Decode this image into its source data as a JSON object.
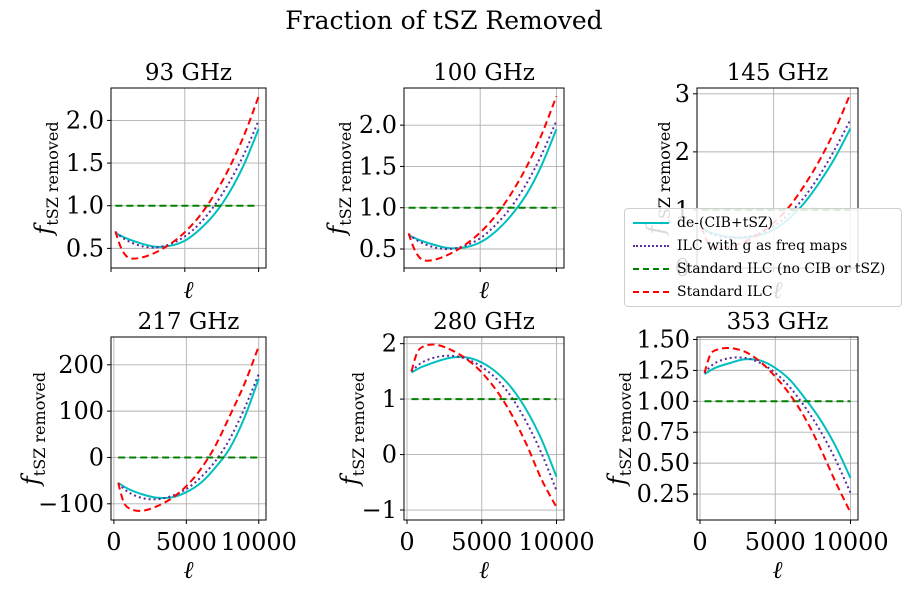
{
  "figure": {
    "suptitle": "Fraction of tSZ Removed"
  },
  "legend": {
    "items": [
      {
        "label": "de-(CIB+tSZ)",
        "color": "#00bfbf",
        "style": "solid"
      },
      {
        "label": "ILC with g as freq maps",
        "color": "#5b2ca0",
        "style": "dotted"
      },
      {
        "label": "Standard ILC (no CIB or tSZ)",
        "color": "#008000",
        "style": "dashed"
      },
      {
        "label": "Standard ILC",
        "color": "#ff0000",
        "style": "dashed"
      }
    ]
  },
  "chart_data": [
    {
      "type": "line",
      "title": "93 GHz",
      "xlabel": "ℓ",
      "ylabel": "f_tSZ removed",
      "xlim": [
        0,
        10500
      ],
      "ylim": [
        0.27,
        2.38
      ],
      "grid": true,
      "xticks": [
        0,
        5000,
        10000
      ],
      "xtick_labels_shown": false,
      "yticks": [
        0.5,
        1.0,
        1.5,
        2.0
      ],
      "ytick_labels": [
        "0.5",
        "1.0",
        "1.5",
        "2.0"
      ],
      "series": [
        {
          "name": "de-(CIB+tSZ)",
          "x": [
            300,
            1000,
            2000,
            3000,
            4000,
            5000,
            6000,
            7000,
            8000,
            9000,
            10000
          ],
          "y": [
            0.68,
            0.62,
            0.56,
            0.52,
            0.53,
            0.59,
            0.72,
            0.9,
            1.15,
            1.48,
            1.9
          ]
        },
        {
          "name": "ILC with g as freq maps",
          "x": [
            300,
            1000,
            2000,
            3000,
            4000,
            5000,
            6000,
            7000,
            8000,
            9000,
            10000
          ],
          "y": [
            0.69,
            0.6,
            0.53,
            0.51,
            0.55,
            0.64,
            0.79,
            1.0,
            1.27,
            1.6,
            2.0
          ]
        },
        {
          "name": "Standard ILC (no CIB or tSZ)",
          "x": [
            300,
            10000
          ],
          "y": [
            1.0,
            1.0
          ]
        },
        {
          "name": "Standard ILC",
          "x": [
            300,
            700,
            1200,
            2000,
            3000,
            4000,
            5000,
            6000,
            7000,
            8000,
            9000,
            10000
          ],
          "y": [
            0.7,
            0.5,
            0.39,
            0.39,
            0.45,
            0.55,
            0.69,
            0.88,
            1.13,
            1.44,
            1.82,
            2.28
          ]
        }
      ]
    },
    {
      "type": "line",
      "title": "100 GHz",
      "xlabel": "ℓ",
      "ylabel": "f_tSZ removed",
      "xlim": [
        0,
        10500
      ],
      "ylim": [
        0.27,
        2.45
      ],
      "grid": true,
      "xticks": [
        0,
        5000,
        10000
      ],
      "xtick_labels_shown": false,
      "yticks": [
        0.5,
        1.0,
        1.5,
        2.0
      ],
      "ytick_labels": [
        "0.5",
        "1.0",
        "1.5",
        "2.0"
      ],
      "series": [
        {
          "name": "de-(CIB+tSZ)",
          "x": [
            300,
            1000,
            2000,
            3000,
            4000,
            5000,
            6000,
            7000,
            8000,
            9000,
            10000
          ],
          "y": [
            0.67,
            0.61,
            0.55,
            0.51,
            0.52,
            0.58,
            0.71,
            0.9,
            1.15,
            1.5,
            1.95
          ]
        },
        {
          "name": "ILC with g as freq maps",
          "x": [
            300,
            1000,
            2000,
            3000,
            4000,
            5000,
            6000,
            7000,
            8000,
            9000,
            10000
          ],
          "y": [
            0.68,
            0.59,
            0.52,
            0.5,
            0.54,
            0.63,
            0.79,
            1.0,
            1.28,
            1.63,
            2.05
          ]
        },
        {
          "name": "Standard ILC (no CIB or tSZ)",
          "x": [
            300,
            10000
          ],
          "y": [
            1.0,
            1.0
          ]
        },
        {
          "name": "Standard ILC",
          "x": [
            300,
            700,
            1200,
            2000,
            3000,
            4000,
            5000,
            6000,
            7000,
            8000,
            9000,
            10000
          ],
          "y": [
            0.69,
            0.49,
            0.37,
            0.37,
            0.44,
            0.55,
            0.7,
            0.9,
            1.16,
            1.48,
            1.87,
            2.35
          ]
        }
      ]
    },
    {
      "type": "line",
      "title": "145 GHz",
      "xlabel": "ℓ",
      "ylabel": "f_tSZ removed",
      "xlim": [
        0,
        10500
      ],
      "ylim": [
        0.0,
        3.1
      ],
      "grid": true,
      "xticks": [
        0,
        5000,
        10000
      ],
      "xtick_labels_shown": false,
      "yticks": [
        0,
        1,
        2,
        3
      ],
      "ytick_labels": [
        "0",
        "1",
        "2",
        "3"
      ],
      "series": [
        {
          "name": "de-(CIB+tSZ)",
          "x": [
            300,
            1000,
            2000,
            3000,
            4000,
            5000,
            6000,
            7000,
            8000,
            9000,
            10000
          ],
          "y": [
            0.68,
            0.6,
            0.54,
            0.52,
            0.56,
            0.66,
            0.85,
            1.12,
            1.48,
            1.9,
            2.4
          ]
        },
        {
          "name": "ILC with g as freq maps",
          "x": [
            300,
            1000,
            2000,
            3000,
            4000,
            5000,
            6000,
            7000,
            8000,
            9000,
            10000
          ],
          "y": [
            0.69,
            0.58,
            0.52,
            0.53,
            0.59,
            0.72,
            0.93,
            1.22,
            1.6,
            2.05,
            2.55
          ]
        },
        {
          "name": "Standard ILC (no CIB or tSZ)",
          "x": [
            300,
            10000
          ],
          "y": [
            1.0,
            1.0
          ]
        },
        {
          "name": "Standard ILC",
          "x": [
            300,
            700,
            1200,
            2000,
            3000,
            4000,
            5000,
            6000,
            7000,
            8000,
            9000,
            10000
          ],
          "y": [
            0.7,
            0.45,
            0.35,
            0.36,
            0.44,
            0.58,
            0.78,
            1.05,
            1.42,
            1.86,
            2.38,
            3.0
          ]
        }
      ]
    },
    {
      "type": "line",
      "title": "217 GHz",
      "xlabel": "ℓ",
      "ylabel": "f_tSZ removed",
      "xlim": [
        -200,
        10500
      ],
      "ylim": [
        -135,
        260
      ],
      "grid": true,
      "xticks": [
        0,
        5000,
        10000
      ],
      "xtick_labels": [
        "0",
        "5000",
        "10000"
      ],
      "yticks": [
        -100,
        0,
        100,
        200
      ],
      "ytick_labels": [
        "−100",
        "0",
        "100",
        "200"
      ],
      "series": [
        {
          "name": "de-(CIB+tSZ)",
          "x": [
            300,
            1000,
            2000,
            3000,
            4000,
            5000,
            6000,
            7000,
            8000,
            9000,
            10000
          ],
          "y": [
            -55,
            -68,
            -80,
            -87,
            -86,
            -75,
            -55,
            -22,
            20,
            85,
            170
          ]
        },
        {
          "name": "ILC with g as freq maps",
          "x": [
            300,
            1000,
            2000,
            3000,
            4000,
            5000,
            6000,
            7000,
            8000,
            9000,
            10000
          ],
          "y": [
            -56,
            -75,
            -88,
            -90,
            -83,
            -68,
            -43,
            -8,
            40,
            105,
            180
          ]
        },
        {
          "name": "Standard ILC (no CIB or tSZ)",
          "x": [
            300,
            10000
          ],
          "y": [
            0,
            0
          ]
        },
        {
          "name": "Standard ILC",
          "x": [
            300,
            700,
            1200,
            2000,
            3000,
            4000,
            5000,
            6000,
            7000,
            8000,
            9000,
            10000
          ],
          "y": [
            -55,
            -98,
            -112,
            -115,
            -105,
            -88,
            -62,
            -25,
            25,
            90,
            158,
            240
          ]
        }
      ]
    },
    {
      "type": "line",
      "title": "280 GHz",
      "xlabel": "ℓ",
      "ylabel": "f_tSZ removed",
      "xlim": [
        -200,
        10500
      ],
      "ylim": [
        -1.18,
        2.12
      ],
      "grid": true,
      "xticks": [
        0,
        5000,
        10000
      ],
      "xtick_labels": [
        "0",
        "5000",
        "10000"
      ],
      "yticks": [
        -1,
        0,
        1,
        2
      ],
      "ytick_labels": [
        "−1",
        "0",
        "1",
        "2"
      ],
      "series": [
        {
          "name": "de-(CIB+tSZ)",
          "x": [
            300,
            1000,
            2000,
            3000,
            4000,
            5000,
            6000,
            7000,
            8000,
            9000,
            10000
          ],
          "y": [
            1.48,
            1.58,
            1.68,
            1.75,
            1.75,
            1.66,
            1.48,
            1.2,
            0.8,
            0.27,
            -0.4
          ]
        },
        {
          "name": "ILC with g as freq maps",
          "x": [
            300,
            1000,
            2000,
            3000,
            4000,
            5000,
            6000,
            7000,
            8000,
            9000,
            10000
          ],
          "y": [
            1.5,
            1.66,
            1.76,
            1.78,
            1.72,
            1.58,
            1.36,
            1.03,
            0.58,
            0.02,
            -0.65
          ]
        },
        {
          "name": "Standard ILC (no CIB or tSZ)",
          "x": [
            300,
            10000
          ],
          "y": [
            1.0,
            1.0
          ]
        },
        {
          "name": "Standard ILC",
          "x": [
            300,
            700,
            1200,
            2000,
            3000,
            4000,
            5000,
            6000,
            7000,
            8000,
            9000,
            10000
          ],
          "y": [
            1.5,
            1.85,
            1.96,
            1.98,
            1.88,
            1.72,
            1.48,
            1.15,
            0.72,
            0.18,
            -0.45,
            -0.95
          ]
        }
      ]
    },
    {
      "type": "line",
      "title": "353 GHz",
      "xlabel": "ℓ",
      "ylabel": "f_tSZ removed",
      "xlim": [
        -200,
        10500
      ],
      "ylim": [
        0.04,
        1.52
      ],
      "grid": true,
      "xticks": [
        0,
        5000,
        10000
      ],
      "xtick_labels": [
        "0",
        "5000",
        "10000"
      ],
      "yticks": [
        0.25,
        0.5,
        0.75,
        1.0,
        1.25,
        1.5
      ],
      "ytick_labels": [
        "0.25",
        "0.50",
        "0.75",
        "1.00",
        "1.25",
        "1.50"
      ],
      "series": [
        {
          "name": "de-(CIB+tSZ)",
          "x": [
            300,
            1000,
            2000,
            3000,
            4000,
            5000,
            6000,
            7000,
            8000,
            9000,
            10000
          ],
          "y": [
            1.22,
            1.27,
            1.31,
            1.34,
            1.33,
            1.27,
            1.17,
            1.02,
            0.85,
            0.64,
            0.38
          ]
        },
        {
          "name": "ILC with g as freq maps",
          "x": [
            300,
            1000,
            2000,
            3000,
            4000,
            5000,
            6000,
            7000,
            8000,
            9000,
            10000
          ],
          "y": [
            1.23,
            1.31,
            1.35,
            1.35,
            1.31,
            1.23,
            1.11,
            0.95,
            0.76,
            0.53,
            0.26
          ]
        },
        {
          "name": "Standard ILC (no CIB or tSZ)",
          "x": [
            300,
            10000
          ],
          "y": [
            1.0,
            1.0
          ]
        },
        {
          "name": "Standard ILC",
          "x": [
            300,
            700,
            1200,
            2000,
            3000,
            4000,
            5000,
            6000,
            7000,
            8000,
            9000,
            10000
          ],
          "y": [
            1.23,
            1.38,
            1.42,
            1.43,
            1.4,
            1.32,
            1.2,
            1.05,
            0.86,
            0.62,
            0.35,
            0.1
          ]
        }
      ]
    }
  ]
}
